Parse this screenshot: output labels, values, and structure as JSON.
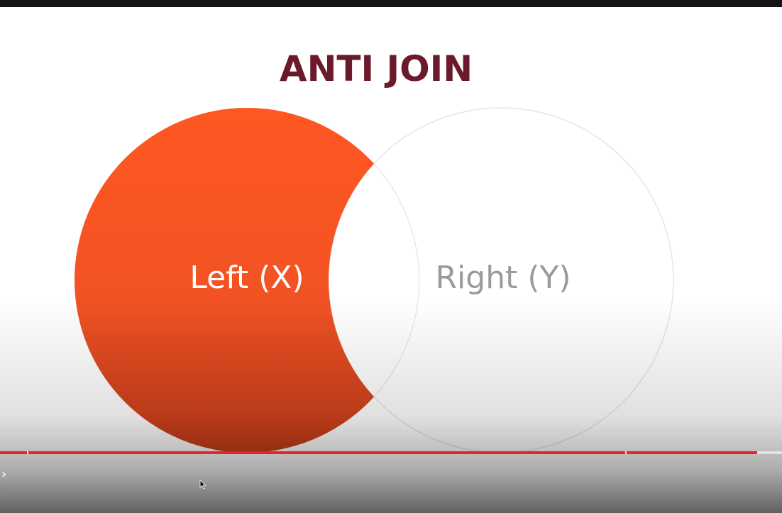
{
  "slide": {
    "title": "ANTI JOIN",
    "left_circle_label": "Left (X)",
    "right_circle_label": "Right (Y)"
  },
  "colors": {
    "title": "#6b1a2b",
    "left_fill_top": "#ff5722",
    "left_fill_bottom": "#c83d1a",
    "right_outline": "#e6e6e6",
    "right_label": "#9a9a9a",
    "left_label": "#ffffff",
    "progress_played": "#e8232b"
  },
  "player": {
    "progress_fraction": 0.968,
    "icons": {
      "expand": "chevron-right-icon",
      "skip": "arrow-right-icon",
      "cursor": "mouse-pointer-icon"
    }
  }
}
